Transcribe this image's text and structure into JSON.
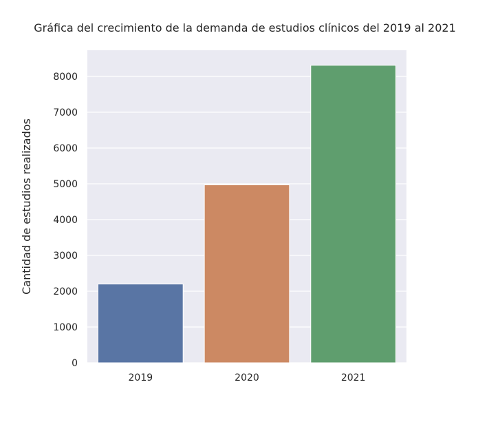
{
  "chart_data": {
    "type": "bar",
    "title": "Gráfica del crecimiento de la demanda de estudios clínicos del 2019 al 2021",
    "xlabel": "",
    "ylabel": "Cantidad de estudios realizados",
    "categories": [
      "2019",
      "2020",
      "2021"
    ],
    "values": [
      2200,
      4970,
      8310
    ],
    "ylim": [
      0,
      8730
    ],
    "yticks": [
      0,
      1000,
      2000,
      3000,
      4000,
      5000,
      6000,
      7000,
      8000
    ],
    "grid": true,
    "legend": "none",
    "style": "seaborn darkgrid",
    "colors": {
      "plot_background": "#EAEAF2",
      "grid": "#FFFFFF",
      "bars": [
        "#5975A4",
        "#CC8963",
        "#5F9E6E"
      ]
    }
  }
}
